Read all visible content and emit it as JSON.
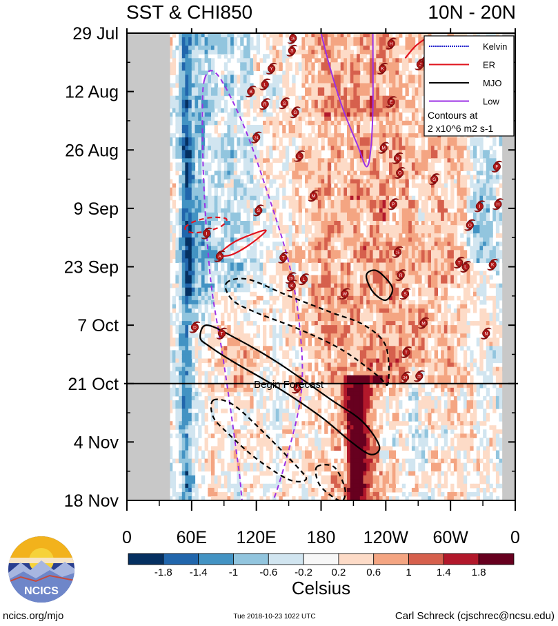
{
  "header": {
    "title": "SST & CHI850",
    "region": "10N - 20N"
  },
  "chart_data": {
    "type": "heatmap",
    "title": "SST & CHI850",
    "region": "10N - 20N",
    "x_ticks": [
      {
        "lon": 0,
        "label": "0"
      },
      {
        "lon": 60,
        "label": "60E"
      },
      {
        "lon": 120,
        "label": "120E"
      },
      {
        "lon": 180,
        "label": "180"
      },
      {
        "lon": 240,
        "label": "120W"
      },
      {
        "lon": 300,
        "label": "60W"
      },
      {
        "lon": 360,
        "label": "0"
      }
    ],
    "y_ticks": [
      {
        "day": 0,
        "label": "29 Jul"
      },
      {
        "day": 14,
        "label": "12 Aug"
      },
      {
        "day": 28,
        "label": "26 Aug"
      },
      {
        "day": 42,
        "label": "9 Sep"
      },
      {
        "day": 56,
        "label": "23 Sep"
      },
      {
        "day": 70,
        "label": "7 Oct"
      },
      {
        "day": 84,
        "label": "21 Oct"
      },
      {
        "day": 98,
        "label": "4 Nov"
      },
      {
        "day": 112,
        "label": "18 Nov"
      }
    ],
    "xlim": [
      0,
      360
    ],
    "ylim": [
      0,
      112
    ],
    "forecast": {
      "day": 84,
      "label": "Begin Forecast"
    },
    "land_mask_lon": [
      [
        0,
        40
      ],
      [
        348,
        360
      ]
    ],
    "colorbar": {
      "label": "Celsius",
      "levels": [
        "-1.8",
        "-1.4",
        "-1",
        "-0.6",
        "-0.2",
        "0.2",
        "0.6",
        "1",
        "1.4",
        "1.8"
      ],
      "colors": [
        "#053061",
        "#2166ac",
        "#4393c3",
        "#92c5de",
        "#d1e5f0",
        "#f7f7f7",
        "#fddbc7",
        "#f4a582",
        "#d6604d",
        "#b2182b",
        "#67001f"
      ]
    },
    "legend": {
      "position": "top-right",
      "items": [
        {
          "name": "Kelvin",
          "color": "#1f1fcc",
          "style": "dotted"
        },
        {
          "name": "ER",
          "color": "#e0141e",
          "style": "solid"
        },
        {
          "name": "MJO",
          "color": "#000000",
          "style": "solid"
        },
        {
          "name": "Low",
          "color": "#9b30e6",
          "style": "solid"
        }
      ],
      "note_line1": "Contours at",
      "note_line2": "2 x10^6 m2 s-1"
    },
    "contours": [
      {
        "type": "Low",
        "sign": "negative",
        "points": [
          [
            72,
            11
          ],
          [
            70,
            22
          ],
          [
            72,
            40
          ],
          [
            78,
            60
          ],
          [
            88,
            76
          ],
          [
            96,
            90
          ],
          [
            104,
            105
          ],
          [
            110,
            115
          ],
          [
            130,
            115
          ],
          [
            150,
            100
          ],
          [
            162,
            85
          ],
          [
            160,
            70
          ],
          [
            150,
            55
          ],
          [
            130,
            38
          ],
          [
            108,
            22
          ],
          [
            84,
            10
          ]
        ]
      },
      {
        "type": "Low",
        "sign": "positive",
        "open": true,
        "points": [
          [
            180,
            0
          ],
          [
            188,
            8
          ],
          [
            200,
            18
          ],
          [
            214,
            27
          ],
          [
            222,
            32
          ],
          [
            226,
            28
          ],
          [
            228,
            18
          ],
          [
            228,
            0
          ]
        ]
      },
      {
        "type": "ER",
        "sign": "negative",
        "points": [
          [
            54,
            46.7
          ],
          [
            62,
            45.2
          ],
          [
            78,
            44.2
          ],
          [
            92,
            44.5
          ],
          [
            88,
            46.2
          ],
          [
            74,
            47.5
          ],
          [
            60,
            47.8
          ]
        ]
      },
      {
        "type": "ER",
        "sign": "positive",
        "points": [
          [
            86,
            53
          ],
          [
            100,
            50
          ],
          [
            124,
            47.5
          ],
          [
            128,
            47.7
          ],
          [
            112,
            51
          ],
          [
            96,
            53.2
          ]
        ]
      },
      {
        "type": "ER",
        "sign": "positive",
        "open": true,
        "points": [
          [
            258,
            6
          ],
          [
            268,
            3
          ],
          [
            280,
            1
          ],
          [
            290,
            1
          ]
        ]
      },
      {
        "type": "MJO",
        "sign": "positive",
        "points": [
          [
            68,
            73
          ],
          [
            74,
            70
          ],
          [
            100,
            73
          ],
          [
            140,
            79
          ],
          [
            190,
            88
          ],
          [
            218,
            93
          ],
          [
            234,
            99
          ],
          [
            226,
            101
          ],
          [
            208,
            98
          ],
          [
            180,
            92
          ],
          [
            140,
            85
          ],
          [
            100,
            79
          ],
          [
            76,
            75
          ]
        ]
      },
      {
        "type": "MJO",
        "sign": "positive",
        "points": [
          [
            222,
            58
          ],
          [
            232,
            57
          ],
          [
            246,
            61
          ],
          [
            240,
            64
          ],
          [
            228,
            62
          ]
        ]
      },
      {
        "type": "MJO",
        "sign": "negative",
        "points": [
          [
            92,
            60
          ],
          [
            112,
            59
          ],
          [
            150,
            63
          ],
          [
            190,
            67
          ],
          [
            220,
            70
          ],
          [
            240,
            75
          ],
          [
            242,
            84
          ],
          [
            232,
            82
          ],
          [
            200,
            76
          ],
          [
            160,
            71
          ],
          [
            120,
            67
          ],
          [
            98,
            64
          ]
        ]
      },
      {
        "type": "MJO",
        "sign": "negative",
        "points": [
          [
            80,
            88
          ],
          [
            98,
            89
          ],
          [
            124,
            95
          ],
          [
            158,
            104
          ],
          [
            166,
            107
          ],
          [
            150,
            107
          ],
          [
            120,
            102
          ],
          [
            94,
            96
          ],
          [
            80,
            92
          ]
        ]
      },
      {
        "type": "MJO",
        "sign": "negative",
        "points": [
          [
            176,
            104
          ],
          [
            192,
            104
          ],
          [
            202,
            109
          ],
          [
            200,
            112
          ],
          [
            190,
            111
          ],
          [
            178,
            108
          ]
        ]
      }
    ],
    "storms": [
      {
        "lon": 154,
        "day": 1.2,
        "label": "16"
      },
      {
        "lon": 153,
        "day": 4.2,
        "label": "S"
      },
      {
        "lon": 134,
        "day": 8.5,
        "label": "Y"
      },
      {
        "lon": 115,
        "day": 14,
        "label": "B"
      },
      {
        "lon": 128,
        "day": 12.3,
        "label": "L"
      },
      {
        "lon": 128,
        "day": 17,
        "label": "R"
      },
      {
        "lon": 146,
        "day": 16.8,
        "label": "S"
      },
      {
        "lon": 156,
        "day": 19,
        "label": "G"
      },
      {
        "lon": 120,
        "day": 25,
        "label": "24"
      },
      {
        "lon": 160,
        "day": 29.5,
        "label": "L"
      },
      {
        "lon": 245,
        "day": 2.5,
        "label": "H"
      },
      {
        "lon": 272,
        "day": 7.5,
        "label": "J"
      },
      {
        "lon": 277,
        "day": 6.5,
        "label": "I"
      },
      {
        "lon": 237,
        "day": 8.5,
        "label": "K"
      },
      {
        "lon": 245,
        "day": 16.5,
        "label": "E"
      },
      {
        "lon": 238,
        "day": 27.5,
        "label": "M"
      },
      {
        "lon": 251,
        "day": 30,
        "label": "N"
      },
      {
        "lon": 253,
        "day": 33.5,
        "label": "O"
      },
      {
        "lon": 285,
        "day": 35,
        "label": "G"
      },
      {
        "lon": 343,
        "day": 32,
        "label": "F"
      },
      {
        "lon": 173,
        "day": 39,
        "label": "M"
      },
      {
        "lon": 247,
        "day": 41,
        "label": "P"
      },
      {
        "lon": 327,
        "day": 41.5,
        "label": "I"
      },
      {
        "lon": 344,
        "day": 41,
        "label": "H"
      },
      {
        "lon": 122,
        "day": 42.5,
        "label": "S"
      },
      {
        "lon": 318,
        "day": 46,
        "label": "O"
      },
      {
        "lon": 74,
        "day": 48,
        "label": "I"
      },
      {
        "lon": 251,
        "day": 52.5,
        "label": "15"
      },
      {
        "lon": 86,
        "day": 53.5,
        "label": "A"
      },
      {
        "lon": 145,
        "day": 53.8,
        "label": "T"
      },
      {
        "lon": 308,
        "day": 55,
        "label": "T"
      },
      {
        "lon": 314,
        "day": 56,
        "label": "L"
      },
      {
        "lon": 339,
        "day": 55.5,
        "label": "K"
      },
      {
        "lon": 254,
        "day": 58,
        "label": "R"
      },
      {
        "lon": 152,
        "day": 58.7,
        "label": "29"
      },
      {
        "lon": 164,
        "day": 59,
        "label": "L"
      },
      {
        "lon": 153,
        "day": 60.5,
        "label": "K"
      },
      {
        "lon": 202,
        "day": 62.5,
        "label": "W"
      },
      {
        "lon": 258,
        "day": 62.5,
        "label": "S"
      },
      {
        "lon": 63,
        "day": 70.5,
        "label": "D"
      },
      {
        "lon": 88,
        "day": 72,
        "label": "T"
      },
      {
        "lon": 275,
        "day": 69.5,
        "label": "M"
      },
      {
        "lon": 333,
        "day": 72,
        "label": "N"
      },
      {
        "lon": 259,
        "day": 76.5,
        "label": "T"
      },
      {
        "lon": 258,
        "day": 82.5,
        "label": "34"
      },
      {
        "lon": 271,
        "day": 82.2,
        "label": "35"
      },
      {
        "lon": 158,
        "day": 85,
        "label": "X"
      }
    ]
  },
  "footer": {
    "site": "ncics.org/mjo",
    "timestamp": "Tue 2018-10-23 1022 UTC",
    "author": "Carl Schreck (cjschrec@ncsu.edu)",
    "logo_text": "NCICS"
  }
}
